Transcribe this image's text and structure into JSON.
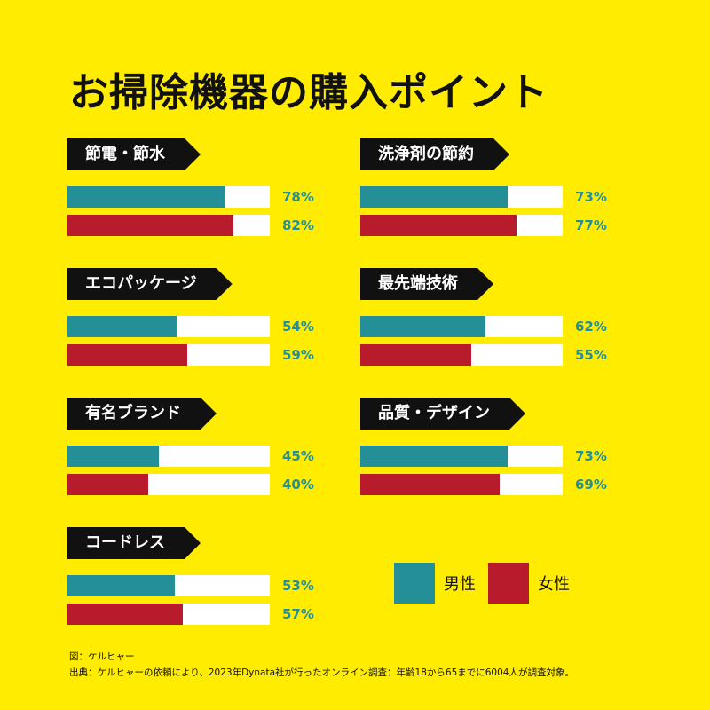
{
  "title": "お掃除機器の購入ポイント",
  "colors": {
    "background": "#FFEC00",
    "male": "#258F98",
    "female": "#B81C2C",
    "track": "#FFFFFF",
    "tag": "#111111"
  },
  "chart_data": {
    "type": "bar",
    "title": "お掃除機器の購入ポイント",
    "orientation": "horizontal",
    "xlim": [
      0,
      100
    ],
    "unit": "%",
    "legend": [
      {
        "name": "男性",
        "color": "#258F98"
      },
      {
        "name": "女性",
        "color": "#B81C2C"
      }
    ],
    "groups": [
      {
        "label": "節電・節水",
        "male": 78,
        "female": 82,
        "male_label": "78%",
        "female_label": "82%"
      },
      {
        "label": "洗浄剤の節約",
        "male": 73,
        "female": 77,
        "male_label": "73%",
        "female_label": "77%"
      },
      {
        "label": "エコパッケージ",
        "male": 54,
        "female": 59,
        "male_label": "54%",
        "female_label": "59%"
      },
      {
        "label": "最先端技術",
        "male": 62,
        "female": 55,
        "male_label": "62%",
        "female_label": "55%"
      },
      {
        "label": "有名ブランド",
        "male": 45,
        "female": 40,
        "male_label": "45%",
        "female_label": "40%"
      },
      {
        "label": "品質・デザイン",
        "male": 73,
        "female": 69,
        "male_label": "73%",
        "female_label": "69%"
      },
      {
        "label": "コードレス",
        "male": 53,
        "female": 57,
        "male_label": "53%",
        "female_label": "57%"
      }
    ]
  },
  "legend": {
    "male_label": "男性",
    "female_label": "女性"
  },
  "notes": {
    "figure": "図：ケルヒャー",
    "source": "出典：ケルヒャーの依頼により、2023年Dynata社が行ったオンライン調査：年齢18から65までに6004人が調査対象。"
  }
}
